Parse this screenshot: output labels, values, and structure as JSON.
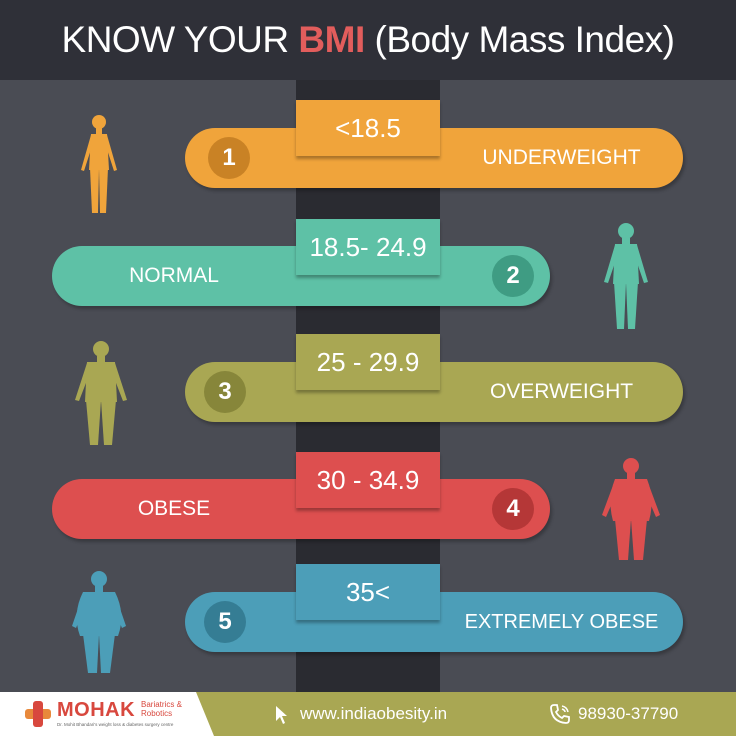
{
  "header": {
    "title_before": "KNOW YOUR ",
    "title_accent": "BMI",
    "title_after": " (Body Mass Index)"
  },
  "categories": [
    {
      "number": "1",
      "range": "<18.5",
      "label": "UNDERWEIGHT",
      "color": "#f0a43b"
    },
    {
      "number": "2",
      "range": "18.5- 24.9",
      "label": "NORMAL",
      "color": "#5ec1a6"
    },
    {
      "number": "3",
      "range": "25 - 29.9",
      "label": "OVERWEIGHT",
      "color": "#a9a753"
    },
    {
      "number": "4",
      "range": "30 - 34.9",
      "label": "OBESE",
      "color": "#dd4f4f"
    },
    {
      "number": "5",
      "range": "35<",
      "label": "EXTREMELY OBESE",
      "color": "#4c9eb8"
    }
  ],
  "footer": {
    "brand": "MOHAK",
    "tagline": "Bariatrics & Robotics",
    "subtitle": "Dr. Mohit Bhandari's weight loss & diabetes surgery centre",
    "website": "www.indiaobesity.in",
    "phone": "98930-37790"
  },
  "icons": [
    "human-figure-icon",
    "cursor-icon",
    "phone-icon",
    "medical-cross-icon"
  ]
}
